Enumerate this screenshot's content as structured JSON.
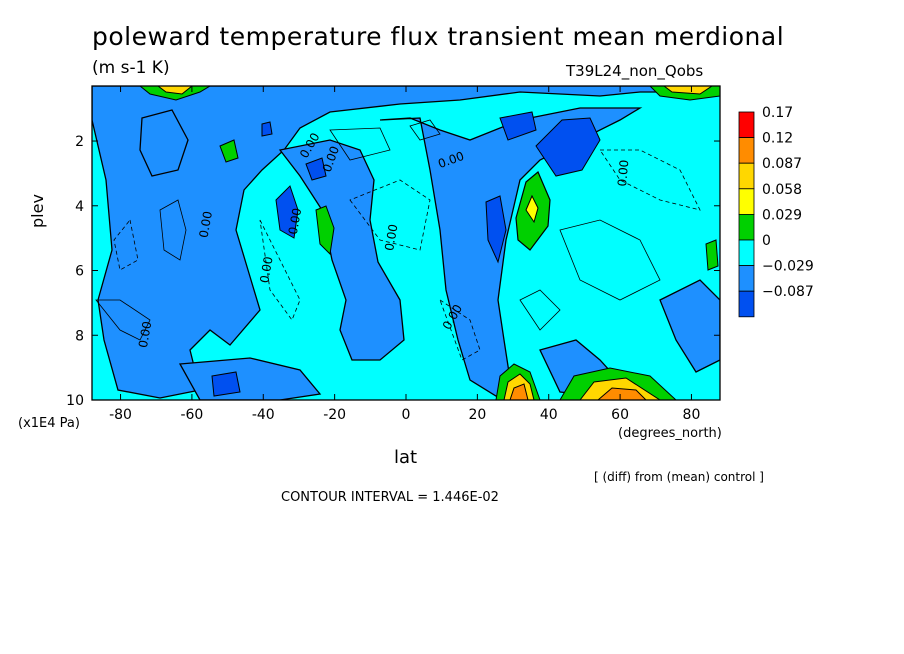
{
  "chart_data": {
    "type": "heatmap",
    "title": "poleward temperature flux transient mean merdional",
    "units": "(m s-1 K)",
    "run_name": "T39L24_non_Qobs",
    "xlabel": "lat",
    "x_units": "(degrees_north)",
    "ylabel": "plev",
    "y_units": "(x1E4 Pa)",
    "x_ticks": [
      "-80",
      "-60",
      "-40",
      "-20",
      "0",
      "20",
      "40",
      "60",
      "80"
    ],
    "x_tick_values": [
      -80,
      -60,
      -40,
      -20,
      0,
      20,
      40,
      60,
      80
    ],
    "y_ticks": [
      "2",
      "4",
      "6",
      "8",
      "10"
    ],
    "y_tick_values": [
      2,
      4,
      6,
      8,
      10
    ],
    "xlim": [
      -88,
      88
    ],
    "ylim": [
      10,
      0.3
    ],
    "colorbar": {
      "labels": [
        "0.17",
        "0.12",
        "0.087",
        "0.058",
        "0.029",
        "0",
        "−0.029",
        "−0.087"
      ],
      "colors": [
        "#ff0000",
        "#ff8c00",
        "#ffd700",
        "#ffff00",
        "#00d000",
        "#00ffff",
        "#1e90ff",
        "#0050f0"
      ]
    },
    "contour_labels": [
      "0.00",
      "0.00",
      "0.00",
      "0.00",
      "0.00",
      "0.00",
      "0.00",
      "0.00",
      "0.00",
      "0.00"
    ],
    "features": [
      {
        "lat": 34,
        "plev": 3.9,
        "value": 0.058
      },
      {
        "lat": 30,
        "plev": 9.8,
        "value": 0.17
      },
      {
        "lat": 58,
        "plev": 9.8,
        "value": 0.12
      },
      {
        "lat": 80,
        "plev": 0.4,
        "value": 0.087
      },
      {
        "lat": -67,
        "plev": 0.4,
        "value": 0.058
      },
      {
        "lat": 48,
        "plev": 2.1,
        "value": -0.029
      },
      {
        "lat": -33,
        "plev": 4.2,
        "value": -0.029
      },
      {
        "lat": 25,
        "plev": 4.5,
        "value": -0.029
      }
    ],
    "footer_note": "[ (diff) from (mean) control ]",
    "contour_interval": "CONTOUR INTERVAL = 1.446E-02"
  }
}
